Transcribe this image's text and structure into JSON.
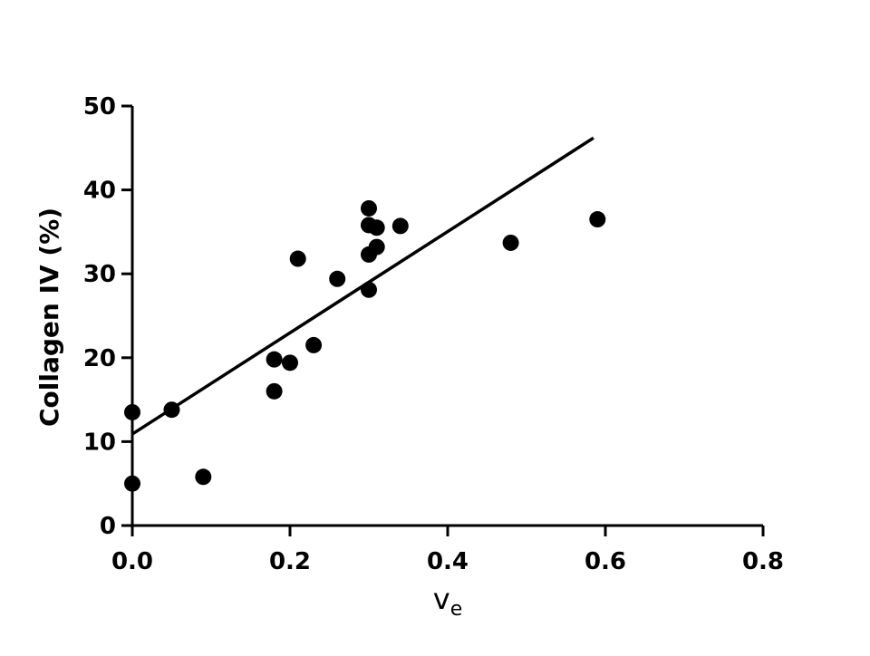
{
  "chart_data": {
    "type": "scatter",
    "xlabel": "v",
    "xlabel_subscript": "e",
    "ylabel": "Collagen IV (%)",
    "xlim": [
      0.0,
      0.8
    ],
    "ylim": [
      0,
      50
    ],
    "x_ticks": [
      0.0,
      0.2,
      0.4,
      0.6,
      0.8
    ],
    "x_tick_labels": [
      "0.0",
      "0.2",
      "0.4",
      "0.6",
      "0.8"
    ],
    "y_ticks": [
      0,
      10,
      20,
      30,
      40,
      50
    ],
    "y_tick_labels": [
      "0",
      "10",
      "20",
      "30",
      "40",
      "50"
    ],
    "grid": false,
    "legend": "none",
    "marker_color": "#000000",
    "line_color": "#000000",
    "points": [
      {
        "x": 0.0,
        "y": 13.5
      },
      {
        "x": 0.0,
        "y": 5.0
      },
      {
        "x": 0.05,
        "y": 13.8
      },
      {
        "x": 0.09,
        "y": 5.8
      },
      {
        "x": 0.18,
        "y": 19.8
      },
      {
        "x": 0.18,
        "y": 16.0
      },
      {
        "x": 0.2,
        "y": 19.4
      },
      {
        "x": 0.21,
        "y": 31.8
      },
      {
        "x": 0.23,
        "y": 21.5
      },
      {
        "x": 0.26,
        "y": 29.4
      },
      {
        "x": 0.3,
        "y": 37.8
      },
      {
        "x": 0.3,
        "y": 35.8
      },
      {
        "x": 0.3,
        "y": 32.3
      },
      {
        "x": 0.3,
        "y": 28.1
      },
      {
        "x": 0.31,
        "y": 35.5
      },
      {
        "x": 0.31,
        "y": 33.2
      },
      {
        "x": 0.34,
        "y": 35.7
      },
      {
        "x": 0.48,
        "y": 33.7
      },
      {
        "x": 0.59,
        "y": 36.5
      }
    ],
    "fit_line": {
      "x": [
        0.0,
        0.585
      ],
      "y": [
        10.9,
        46.2
      ]
    }
  }
}
